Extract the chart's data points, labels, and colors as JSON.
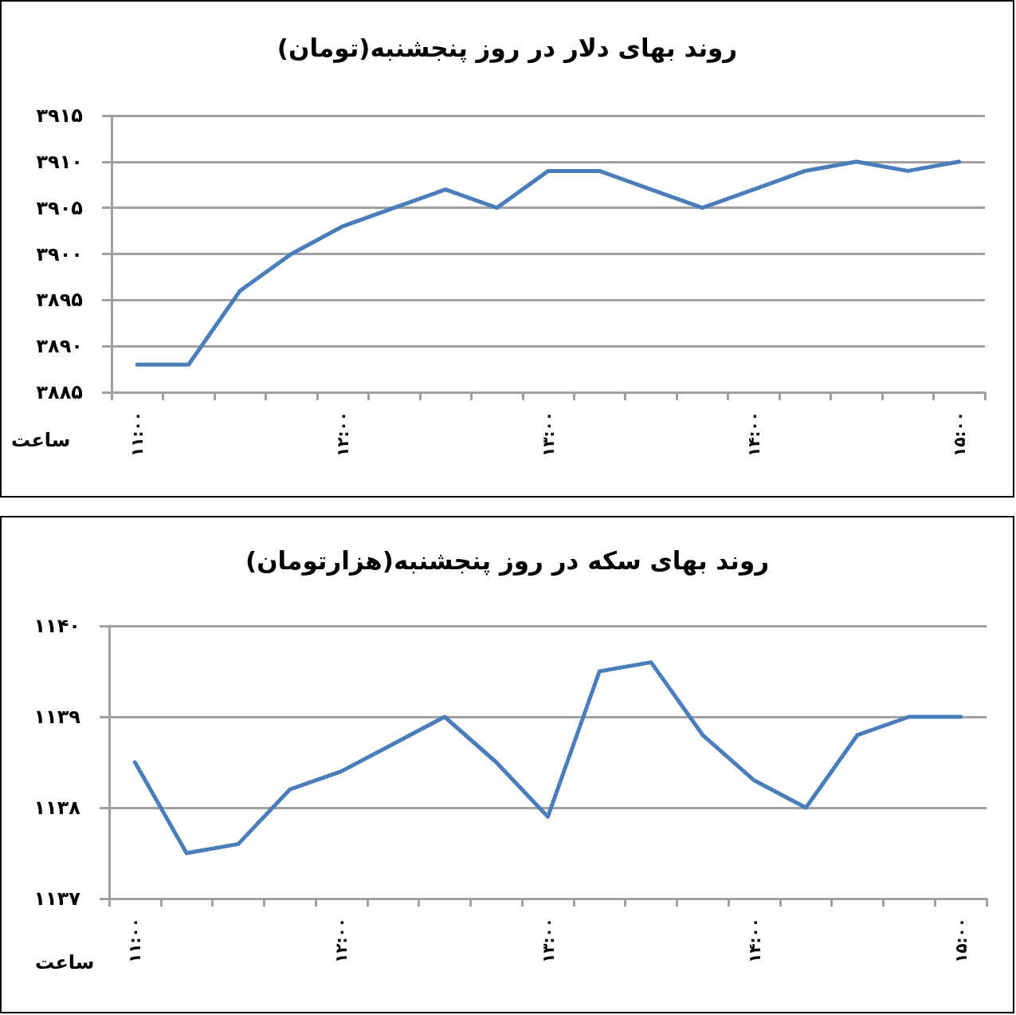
{
  "chart_data": [
    {
      "type": "line",
      "title": "روند بهای دلار در روز پنجشنبه(تومان)",
      "xlabel": "ساعت",
      "categories": [
        "۱۱:۰۰",
        null,
        null,
        null,
        "۱۲:۰۰",
        null,
        null,
        null,
        "۱۳:۰۰",
        null,
        null,
        null,
        "۱۴:۰۰",
        null,
        null,
        null,
        "۱۵:۰۰"
      ],
      "values": [
        3888,
        3888,
        3896,
        3900,
        3903,
        3905,
        3907,
        3905,
        3909,
        3909,
        3907,
        3905,
        3907,
        3909,
        3910,
        3909,
        3910
      ],
      "color": "#4a7ebb",
      "ylim": [
        3885,
        3915
      ],
      "yticks": [
        {
          "value": 3885,
          "label": "۳۸۸۵"
        },
        {
          "value": 3890,
          "label": "۳۸۹۰"
        },
        {
          "value": 3895,
          "label": "۳۸۹۵"
        },
        {
          "value": 3900,
          "label": "۳۹۰۰"
        },
        {
          "value": 3905,
          "label": "۳۹۰۵"
        },
        {
          "value": 3910,
          "label": "۳۹۱۰"
        },
        {
          "value": 3915,
          "label": "۳۹۱۵"
        }
      ],
      "grid": "y",
      "marker": "none",
      "line_style": "solid"
    },
    {
      "type": "line",
      "title": "روند بهای سکه در روز پنجشنبه(هزارتومان)",
      "xlabel": "ساعت",
      "categories": [
        "۱۱:۰۰",
        null,
        null,
        null,
        "۱۲:۰۰",
        null,
        null,
        null,
        "۱۳:۰۰",
        null,
        null,
        null,
        "۱۴:۰۰",
        null,
        null,
        null,
        "۱۵:۰۰"
      ],
      "values": [
        1138.5,
        1137.5,
        1137.6,
        1138.2,
        1138.4,
        1138.7,
        1139,
        1138.5,
        1137.9,
        1139.5,
        1139.6,
        1138.8,
        1138.3,
        1138,
        1138.8,
        1139,
        1139
      ],
      "color": "#4a7ebb",
      "ylim": [
        1137,
        1140
      ],
      "yticks": [
        {
          "value": 1137,
          "label": "۱۱۳۷"
        },
        {
          "value": 1138,
          "label": "۱۱۳۸"
        },
        {
          "value": 1139,
          "label": "۱۱۳۹"
        },
        {
          "value": 1140,
          "label": "۱۱۴۰"
        }
      ],
      "grid": "y",
      "marker": "none",
      "line_style": "solid"
    }
  ]
}
